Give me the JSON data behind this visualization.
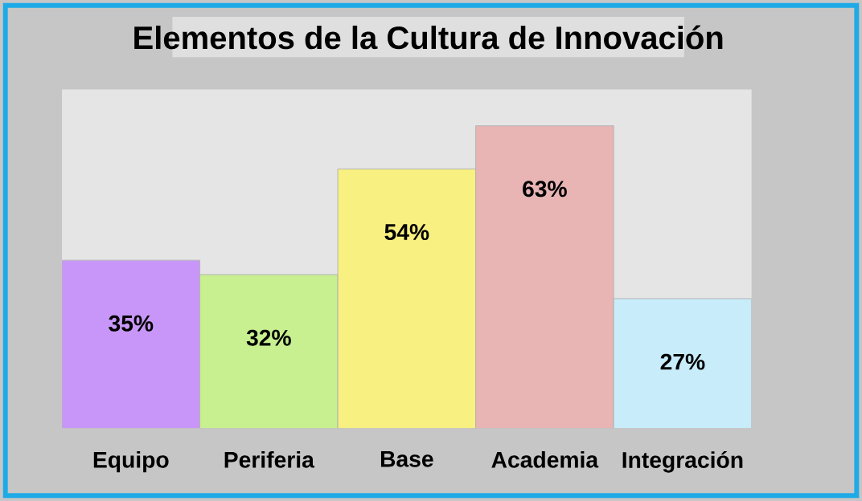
{
  "chart_data": {
    "type": "bar",
    "title": "Elementos de la Cultura de Innovación",
    "categories": [
      "Equipo",
      "Periferia",
      "Base",
      "Academia",
      "Integración"
    ],
    "values": [
      35,
      32,
      54,
      63,
      27
    ],
    "value_labels": [
      "35%",
      "32%",
      "54%",
      "63%",
      "27%"
    ],
    "colors": [
      "#c896f8",
      "#c8f090",
      "#f8f080",
      "#e8b4b4",
      "#c8ecfa"
    ]
  }
}
